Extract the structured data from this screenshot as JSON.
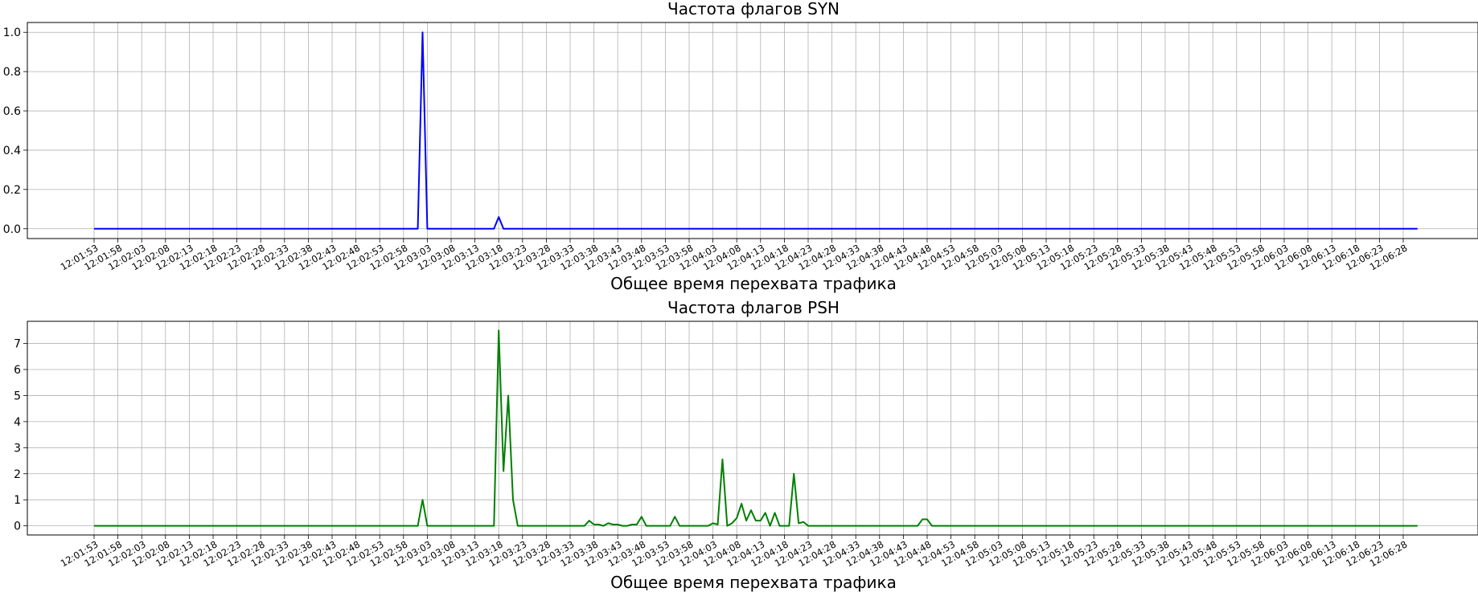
{
  "chart_data": [
    {
      "type": "line",
      "title": "Частота флагов SYN",
      "xlabel": "Общее время перехвата трафика",
      "ylabel": "",
      "grid": true,
      "color": "#0000ff",
      "x_tick_labels": [
        "12:01:53",
        "12:01:58",
        "12:02:03",
        "12:02:08",
        "12:02:13",
        "12:02:18",
        "12:02:23",
        "12:02:28",
        "12:02:33",
        "12:02:38",
        "12:02:43",
        "12:02:48",
        "12:02:53",
        "12:02:58",
        "12:03:03",
        "12:03:08",
        "12:03:13",
        "12:03:18",
        "12:03:23",
        "12:03:28",
        "12:03:33",
        "12:03:38",
        "12:03:43",
        "12:03:48",
        "12:03:53",
        "12:03:58",
        "12:04:03",
        "12:04:08",
        "12:04:13",
        "12:04:18",
        "12:04:23",
        "12:04:28",
        "12:04:33",
        "12:04:38",
        "12:04:43",
        "12:04:48",
        "12:04:53",
        "12:04:58",
        "12:05:03",
        "12:05:08",
        "12:05:13",
        "12:05:18",
        "12:05:23",
        "12:05:28",
        "12:05:33",
        "12:05:38",
        "12:05:43",
        "12:05:48",
        "12:05:53",
        "12:05:58",
        "12:06:03",
        "12:06:08",
        "12:06:13",
        "12:06:18",
        "12:06:23",
        "12:06:28"
      ],
      "y_ticks": [
        0.0,
        0.2,
        0.4,
        0.6,
        0.8,
        1.0
      ],
      "y_tick_labels": [
        "0.0",
        "0.2",
        "0.4",
        "0.6",
        "0.8",
        "1.0"
      ],
      "ylim": [
        -0.05,
        1.05
      ],
      "x_range_seconds": [
        0,
        280
      ],
      "series": [
        {
          "points": [
            [
              0,
              0
            ],
            [
              68,
              0
            ],
            [
              69,
              1.0
            ],
            [
              70,
              0
            ],
            [
              84,
              0
            ],
            [
              85,
              0.06
            ],
            [
              86,
              0
            ],
            [
              278,
              0
            ]
          ]
        }
      ]
    },
    {
      "type": "line",
      "title": "Частота флагов PSH",
      "xlabel": "Общее время перехвата трафика",
      "ylabel": "",
      "grid": true,
      "color": "#008000",
      "x_tick_labels": [
        "12:01:53",
        "12:01:58",
        "12:02:03",
        "12:02:08",
        "12:02:13",
        "12:02:18",
        "12:02:23",
        "12:02:28",
        "12:02:33",
        "12:02:38",
        "12:02:43",
        "12:02:48",
        "12:02:53",
        "12:02:58",
        "12:03:03",
        "12:03:08",
        "12:03:13",
        "12:03:18",
        "12:03:23",
        "12:03:28",
        "12:03:33",
        "12:03:38",
        "12:03:43",
        "12:03:48",
        "12:03:53",
        "12:03:58",
        "12:04:03",
        "12:04:08",
        "12:04:13",
        "12:04:18",
        "12:04:23",
        "12:04:28",
        "12:04:33",
        "12:04:38",
        "12:04:43",
        "12:04:48",
        "12:04:53",
        "12:04:58",
        "12:05:03",
        "12:05:08",
        "12:05:13",
        "12:05:18",
        "12:05:23",
        "12:05:28",
        "12:05:33",
        "12:05:38",
        "12:05:43",
        "12:05:48",
        "12:05:53",
        "12:05:58",
        "12:06:03",
        "12:06:08",
        "12:06:13",
        "12:06:18",
        "12:06:23",
        "12:06:28"
      ],
      "y_ticks": [
        0,
        1,
        2,
        3,
        4,
        5,
        6,
        7
      ],
      "y_tick_labels": [
        "0",
        "1",
        "2",
        "3",
        "4",
        "5",
        "6",
        "7"
      ],
      "ylim": [
        -0.35,
        7.85
      ],
      "x_range_seconds": [
        0,
        280
      ],
      "series": [
        {
          "points": [
            [
              0,
              0
            ],
            [
              68,
              0
            ],
            [
              69,
              1.0
            ],
            [
              70,
              0
            ],
            [
              84,
              0
            ],
            [
              85,
              7.5
            ],
            [
              86,
              2.1
            ],
            [
              87,
              5.0
            ],
            [
              88,
              1.0
            ],
            [
              89,
              0
            ],
            [
              103,
              0
            ],
            [
              104,
              0.2
            ],
            [
              105,
              0.05
            ],
            [
              106,
              0.05
            ],
            [
              107,
              0
            ],
            [
              108,
              0.1
            ],
            [
              109,
              0.05
            ],
            [
              110,
              0.05
            ],
            [
              111,
              0
            ],
            [
              112,
              0
            ],
            [
              113,
              0.05
            ],
            [
              114,
              0.05
            ],
            [
              115,
              0.35
            ],
            [
              116,
              0
            ],
            [
              121,
              0
            ],
            [
              122,
              0.35
            ],
            [
              123,
              0
            ],
            [
              129,
              0
            ],
            [
              130,
              0.1
            ],
            [
              131,
              0.05
            ],
            [
              132,
              2.55
            ],
            [
              133,
              0
            ],
            [
              134,
              0.1
            ],
            [
              135,
              0.3
            ],
            [
              136,
              0.85
            ],
            [
              137,
              0.2
            ],
            [
              138,
              0.6
            ],
            [
              139,
              0.2
            ],
            [
              140,
              0.2
            ],
            [
              141,
              0.5
            ],
            [
              142,
              0
            ],
            [
              143,
              0.5
            ],
            [
              144,
              0
            ],
            [
              146,
              0
            ],
            [
              147,
              2.0
            ],
            [
              148,
              0.1
            ],
            [
              149,
              0.15
            ],
            [
              150,
              0
            ],
            [
              173,
              0
            ],
            [
              174,
              0.25
            ],
            [
              175,
              0.25
            ],
            [
              176,
              0
            ],
            [
              278,
              0
            ]
          ]
        }
      ]
    }
  ]
}
